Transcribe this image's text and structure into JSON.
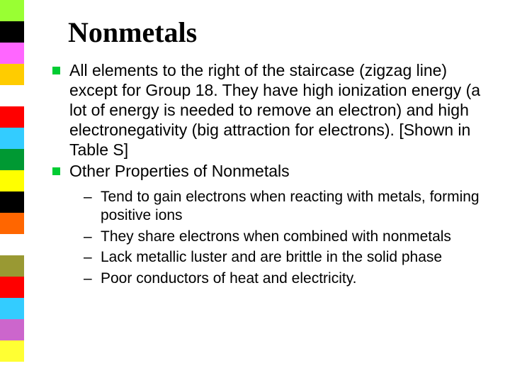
{
  "colorbar": {
    "segments": [
      "#99ff33",
      "#000000",
      "#ff66ff",
      "#ffcc00",
      "#ffffff",
      "#ff0000",
      "#33ccff",
      "#009933",
      "#ffff00",
      "#000000",
      "#ff6600",
      "#ffffff",
      "#999933",
      "#ff0000",
      "#33ccff",
      "#cc66cc",
      "#ffff33",
      "#ffffff"
    ]
  },
  "title": "Nonmetals",
  "bullet_color": "#00cc33",
  "bullets": [
    {
      "text": "All elements to the right of the staircase (zigzag line) except for Group 18. They have high ionization energy (a lot of energy is needed to remove an electron) and high electronegativity (big attraction for electrons). [Shown in Table S]"
    },
    {
      "text": "Other Properties of Nonmetals"
    }
  ],
  "subbullets": [
    "Tend to gain electrons when reacting with metals, forming positive ions",
    "They share electrons when combined with nonmetals",
    "Lack metallic luster and are brittle in the solid phase",
    "Poor conductors of heat and electricity."
  ],
  "dash": "–"
}
